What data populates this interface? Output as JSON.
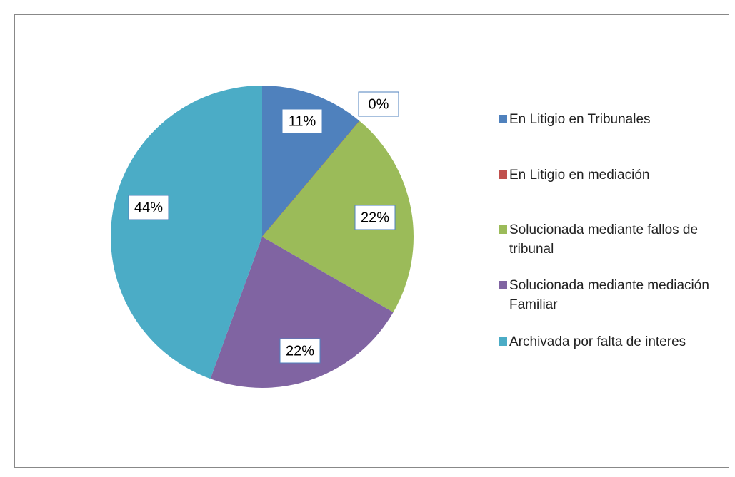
{
  "chart_data": {
    "type": "pie",
    "categories": [
      "En Litigio en Tribunales",
      "En Litigio en mediación",
      "Solucionada mediante fallos de tribunal",
      "Solucionada mediante mediación Familiar",
      "Archivada por falta de interes"
    ],
    "values": [
      11,
      0,
      22,
      22,
      44
    ],
    "value_labels": [
      "11%",
      "0%",
      "22%",
      "22%",
      "44%"
    ],
    "colors": [
      "#4f81bd",
      "#c0504d",
      "#9bbb59",
      "#8064a2",
      "#4bacc6"
    ],
    "legend": "right"
  }
}
